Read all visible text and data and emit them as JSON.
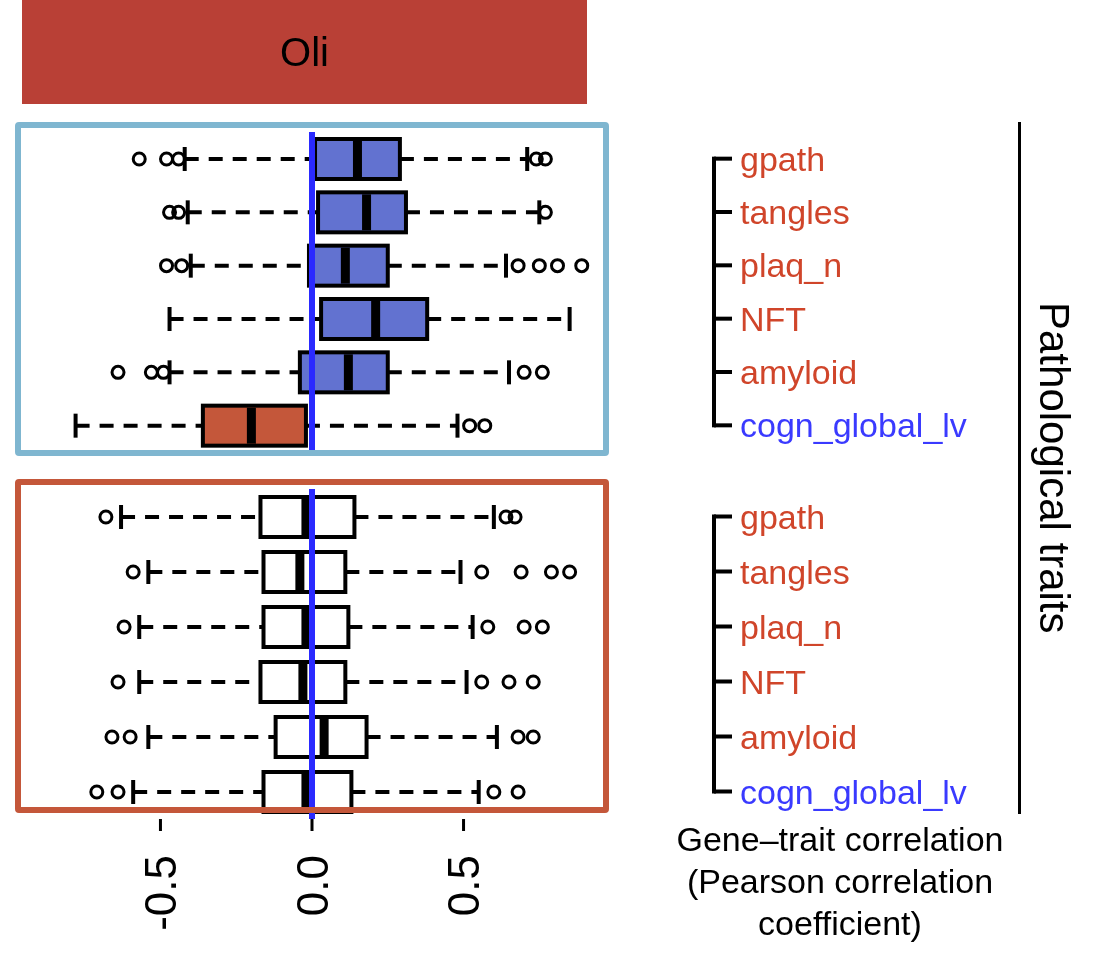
{
  "chart_data": [
    {
      "type": "box",
      "title": "Oli",
      "ylabel": "Pathological traits",
      "orientation": "horizontal",
      "tick_labels": "y",
      "categories": [
        "gpath",
        "tangles",
        "plaq_n",
        "NFT",
        "amyloid",
        "cogn_global_lv"
      ],
      "colors": [
        "#6272d0",
        "#6272d0",
        "#6272d0",
        "#6272d0",
        "#6272d0",
        "#c4573a"
      ],
      "boxes": [
        {
          "low": -0.42,
          "q1": 0.01,
          "median": 0.15,
          "q3": 0.29,
          "high": 0.71,
          "outliers": [
            -0.57,
            -0.48,
            -0.44,
            0.74,
            0.77
          ]
        },
        {
          "low": -0.41,
          "q1": 0.02,
          "median": 0.18,
          "q3": 0.31,
          "high": 0.75,
          "outliers": [
            -0.47,
            -0.44,
            0.77
          ]
        },
        {
          "low": -0.4,
          "q1": -0.01,
          "median": 0.11,
          "q3": 0.25,
          "high": 0.64,
          "outliers": [
            -0.48,
            -0.43,
            0.68,
            0.75,
            0.81,
            0.89
          ]
        },
        {
          "low": -0.47,
          "q1": 0.03,
          "median": 0.21,
          "q3": 0.38,
          "high": 0.85
        },
        {
          "low": -0.47,
          "q1": -0.04,
          "median": 0.12,
          "q3": 0.25,
          "high": 0.65,
          "outliers": [
            -0.64,
            -0.53,
            -0.49,
            0.7,
            0.76
          ]
        },
        {
          "low": -0.78,
          "q1": -0.36,
          "median": -0.2,
          "q3": -0.02,
          "high": 0.48,
          "outliers": [
            0.52,
            0.57
          ]
        }
      ],
      "xlim": [
        -0.97,
        0.97
      ],
      "ref_lines": [
        {
          "axis": "x",
          "value": 0,
          "color": "#2a2aff"
        }
      ],
      "marker": "circle"
    },
    {
      "type": "box",
      "xlabel": "Gene–trait correlation (Pearson correlation coefficient)",
      "orientation": "horizontal",
      "categories": [
        "gpath",
        "tangles",
        "plaq_n",
        "NFT",
        "amyloid",
        "cogn_global_lv"
      ],
      "colors": [
        "#ffffff",
        "#ffffff",
        "#ffffff",
        "#ffffff",
        "#ffffff",
        "#ffffff"
      ],
      "boxes": [
        {
          "low": -0.63,
          "q1": -0.17,
          "median": -0.02,
          "q3": 0.14,
          "high": 0.6,
          "outliers": [
            -0.68,
            0.64,
            0.67
          ]
        },
        {
          "low": -0.54,
          "q1": -0.16,
          "median": -0.04,
          "q3": 0.11,
          "high": 0.49,
          "outliers": [
            -0.59,
            0.56,
            0.69,
            0.79,
            0.85
          ]
        },
        {
          "low": -0.57,
          "q1": -0.16,
          "median": -0.02,
          "q3": 0.12,
          "high": 0.53,
          "outliers": [
            -0.62,
            0.58,
            0.7,
            0.76
          ]
        },
        {
          "low": -0.57,
          "q1": -0.17,
          "median": -0.03,
          "q3": 0.11,
          "high": 0.51,
          "outliers": [
            -0.64,
            0.56,
            0.65,
            0.73
          ]
        },
        {
          "low": -0.54,
          "q1": -0.12,
          "median": 0.04,
          "q3": 0.18,
          "high": 0.61,
          "outliers": [
            -0.66,
            -0.6,
            0.68,
            0.73
          ]
        },
        {
          "low": -0.59,
          "q1": -0.16,
          "median": -0.02,
          "q3": 0.13,
          "high": 0.55,
          "outliers": [
            -0.71,
            -0.64,
            0.6,
            0.68
          ]
        }
      ],
      "xlim": [
        -0.97,
        0.97
      ],
      "xticks": [
        {
          "value": -0.5,
          "label": "-0.5"
        },
        {
          "value": 0,
          "label": "0.0"
        },
        {
          "value": 0.5,
          "label": "0.5"
        }
      ],
      "ref_lines": [
        {
          "axis": "x",
          "value": 0,
          "color": "#2a2aff"
        }
      ],
      "marker": "circle"
    }
  ]
}
